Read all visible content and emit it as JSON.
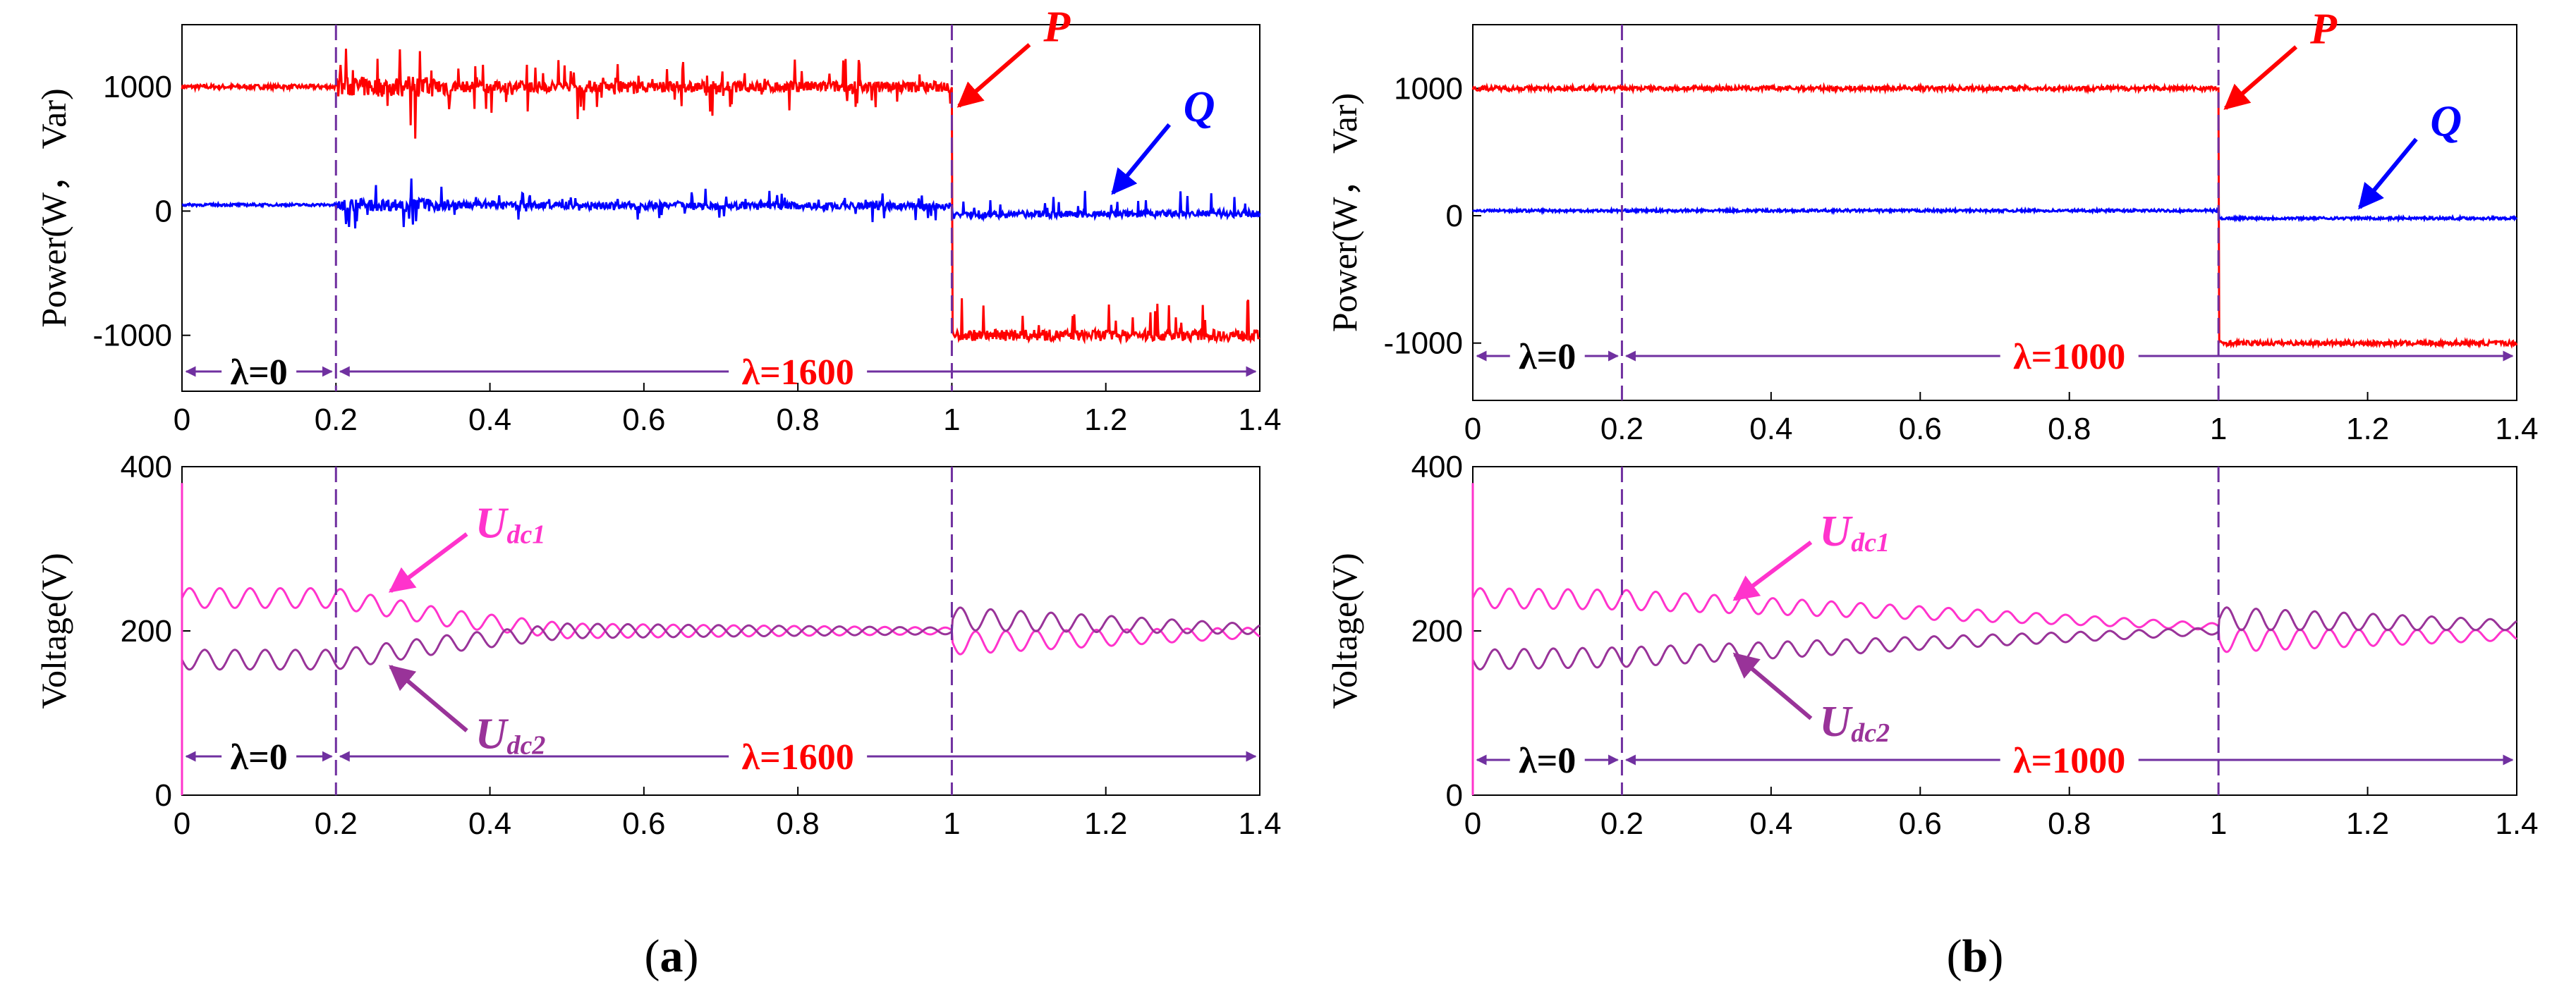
{
  "chart_data": [
    {
      "type": "line",
      "panel": "a",
      "subplot": "power",
      "ylabel": "Power(W， Var)",
      "xlim": [
        0,
        1.4
      ],
      "ylim": [
        -1450,
        1500
      ],
      "yticks": [
        1000,
        0,
        -1000
      ],
      "xticks": [
        0,
        0.2,
        0.4,
        0.6,
        0.8,
        1,
        1.2,
        1.4
      ],
      "xtick_labels": [
        "0",
        "0.2",
        "0.4",
        "0.6",
        "0.8",
        "1",
        "1.2",
        "1.4"
      ],
      "series": [
        {
          "name": "P",
          "color": "#ff0000",
          "x": [
            0,
            0.2,
            0.2,
            1.0,
            1.0,
            1.4
          ],
          "y": [
            1000,
            1000,
            1000,
            1000,
            -1000,
            -1000
          ]
        },
        {
          "name": "Q",
          "color": "#0000ff",
          "x": [
            0,
            0.2,
            0.2,
            1.0,
            1.0,
            1.4
          ],
          "y": [
            50,
            50,
            50,
            40,
            -30,
            -20
          ]
        }
      ],
      "vlines": [
        0.2,
        1.0
      ],
      "annotations": [
        {
          "label": "P",
          "color": "#ff0000",
          "x": 1.0,
          "y": 800
        },
        {
          "label": "Q",
          "color": "#0000ff",
          "x": 1.2,
          "y": 100
        }
      ],
      "lambda_labels": [
        {
          "text": "λ=0",
          "color": "#000000",
          "from": 0,
          "to": 0.2
        },
        {
          "text": "λ=1600",
          "color": "#ff0000",
          "from": 0.2,
          "to": 1.4
        }
      ]
    },
    {
      "type": "line",
      "panel": "a",
      "subplot": "voltage",
      "ylabel": "Voltage(V)",
      "xlim": [
        0,
        1.4
      ],
      "ylim": [
        0,
        400
      ],
      "yticks": [
        400,
        200,
        0
      ],
      "xticks": [
        0,
        0.2,
        0.4,
        0.6,
        0.8,
        1,
        1.2,
        1.4
      ],
      "xtick_labels": [
        "0",
        "0.2",
        "0.4",
        "0.6",
        "0.8",
        "1",
        "1.2",
        "1.4"
      ],
      "series": [
        {
          "name": "Udc1",
          "color": "#ff33cc",
          "x": [
            0,
            0.2,
            0.35,
            0.5,
            1.0,
            1.0,
            1.4
          ],
          "y": [
            240,
            240,
            215,
            200,
            200,
            185,
            198
          ]
        },
        {
          "name": "Udc2",
          "color": "#993399",
          "x": [
            0,
            0.2,
            0.35,
            0.5,
            1.0,
            1.0,
            1.4
          ],
          "y": [
            165,
            165,
            185,
            200,
            200,
            215,
            202
          ]
        }
      ],
      "vlines": [
        0.2,
        1.0
      ],
      "annotations": [
        {
          "label": "U",
          "subscript": "dc1",
          "color": "#ff33cc",
          "x": 0.26,
          "y": 245
        },
        {
          "label": "U",
          "subscript": "dc2",
          "color": "#993399",
          "x": 0.26,
          "y": 160
        }
      ],
      "lambda_labels": [
        {
          "text": "λ=0",
          "color": "#000000",
          "from": 0,
          "to": 0.2
        },
        {
          "text": "λ=1600",
          "color": "#ff0000",
          "from": 0.2,
          "to": 1.4
        }
      ]
    },
    {
      "type": "line",
      "panel": "b",
      "subplot": "power",
      "ylabel": "Power(W， Var)",
      "xlim": [
        0,
        1.4
      ],
      "ylim": [
        -1450,
        1500
      ],
      "yticks": [
        1000,
        0,
        -1000
      ],
      "xticks": [
        0,
        0.2,
        0.4,
        0.6,
        0.8,
        1,
        1.2,
        1.4
      ],
      "xtick_labels": [
        "0",
        "0.2",
        "0.4",
        "0.6",
        "0.8",
        "1",
        "1.2",
        "1.4"
      ],
      "series": [
        {
          "name": "P",
          "color": "#ff0000",
          "x": [
            0,
            1.0,
            1.0,
            1.4
          ],
          "y": [
            1000,
            1000,
            -1000,
            -1000
          ]
        },
        {
          "name": "Q",
          "color": "#0000ff",
          "x": [
            0,
            1.0,
            1.0,
            1.4
          ],
          "y": [
            40,
            40,
            -20,
            -20
          ]
        }
      ],
      "vlines": [
        0.2,
        1.0
      ],
      "annotations": [
        {
          "label": "P",
          "color": "#ff0000",
          "x": 1.0,
          "y": 800
        },
        {
          "label": "Q",
          "color": "#0000ff",
          "x": 1.18,
          "y": 20
        }
      ],
      "lambda_labels": [
        {
          "text": "λ=0",
          "color": "#000000",
          "from": 0,
          "to": 0.2
        },
        {
          "text": "λ=1000",
          "color": "#ff0000",
          "from": 0.2,
          "to": 1.4
        }
      ]
    },
    {
      "type": "line",
      "panel": "b",
      "subplot": "voltage",
      "ylabel": "Voltage(V)",
      "xlim": [
        0,
        1.4
      ],
      "ylim": [
        0,
        400
      ],
      "yticks": [
        400,
        200,
        0
      ],
      "xticks": [
        0,
        0.2,
        0.4,
        0.6,
        0.8,
        1,
        1.2,
        1.4
      ],
      "xtick_labels": [
        "0",
        "0.2",
        "0.4",
        "0.6",
        "0.8",
        "1",
        "1.2",
        "1.4"
      ],
      "series": [
        {
          "name": "Udc1",
          "color": "#ff33cc",
          "x": [
            0,
            0.2,
            0.6,
            1.0,
            1.0,
            1.4
          ],
          "y": [
            240,
            238,
            222,
            205,
            188,
            195
          ]
        },
        {
          "name": "Udc2",
          "color": "#993399",
          "x": [
            0,
            0.2,
            0.6,
            1.0,
            1.0,
            1.4
          ],
          "y": [
            165,
            168,
            185,
            200,
            215,
            207
          ]
        }
      ],
      "vlines": [
        0.2,
        1.0
      ],
      "annotations": [
        {
          "label": "U",
          "subscript": "dc1",
          "color": "#ff33cc",
          "x": 0.34,
          "y": 235
        },
        {
          "label": "U",
          "subscript": "dc2",
          "color": "#993399",
          "x": 0.34,
          "y": 175
        }
      ],
      "lambda_labels": [
        {
          "text": "λ=0",
          "color": "#000000",
          "from": 0,
          "to": 0.2
        },
        {
          "text": "λ=1000",
          "color": "#ff0000",
          "from": 0.2,
          "to": 1.4
        }
      ]
    }
  ],
  "captions": {
    "a": "(a)",
    "b": "(b)"
  },
  "caption_letters": {
    "a": "a",
    "b": "b"
  }
}
